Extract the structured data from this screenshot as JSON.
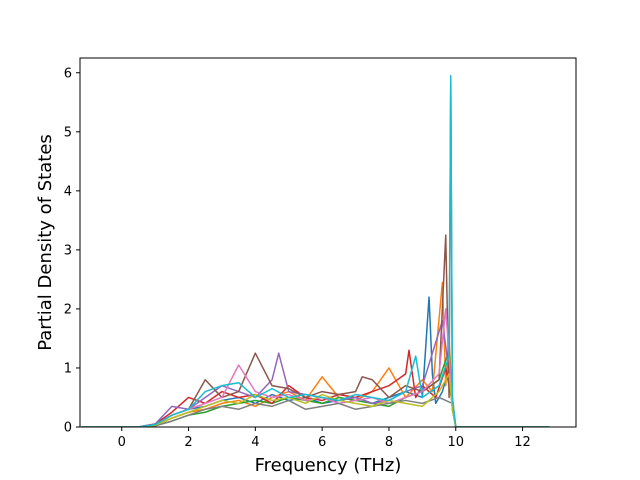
{
  "chart_data": {
    "type": "line",
    "title": "",
    "xlabel": "Frequency (THz)",
    "ylabel": "Partial Density of States",
    "xlim": [
      -1.25,
      13.6
    ],
    "ylim": [
      0,
      6.25
    ],
    "xticks": [
      0,
      2,
      4,
      6,
      8,
      10,
      12
    ],
    "yticks": [
      0,
      1,
      2,
      3,
      4,
      5,
      6
    ],
    "xtick_labels": [
      "0",
      "2",
      "4",
      "6",
      "8",
      "10",
      12
    ],
    "ytick_labels": [
      "0",
      "1",
      "2",
      "3",
      "4",
      "5",
      "6"
    ],
    "grid": false,
    "legend": "none",
    "palette": [
      "#1f77b4",
      "#ff7f0e",
      "#2ca02c",
      "#d62728",
      "#9467bd",
      "#8c564b",
      "#e377c2",
      "#7f7f7f",
      "#bcbd22",
      "#17becf"
    ],
    "series": [
      {
        "color": "#1f77b4",
        "x": [
          -1.2,
          0.5,
          1.0,
          1.5,
          2.0,
          2.5,
          3.0,
          3.5,
          4.0,
          4.5,
          5.0,
          5.5,
          6.0,
          6.5,
          7.0,
          7.5,
          8.0,
          8.5,
          9.0,
          9.2,
          9.3,
          9.4,
          9.6,
          9.8,
          9.9,
          10.0,
          12.8
        ],
        "y": [
          0,
          0,
          0.05,
          0.2,
          0.3,
          0.35,
          0.45,
          0.5,
          0.4,
          0.55,
          0.45,
          0.5,
          0.4,
          0.45,
          0.5,
          0.4,
          0.5,
          0.6,
          0.5,
          2.2,
          0.9,
          0.4,
          0.6,
          1.0,
          0.3,
          0,
          0
        ]
      },
      {
        "color": "#ff7f0e",
        "x": [
          -1.2,
          0.5,
          1.0,
          1.5,
          2.0,
          2.5,
          3.0,
          3.5,
          4.0,
          4.5,
          5.0,
          5.5,
          6.0,
          6.5,
          7.0,
          7.5,
          8.0,
          8.5,
          9.0,
          9.3,
          9.6,
          9.7,
          9.8,
          9.9,
          10.0,
          12.8
        ],
        "y": [
          0,
          0,
          0.03,
          0.15,
          0.25,
          0.3,
          0.4,
          0.45,
          0.35,
          0.5,
          0.6,
          0.45,
          0.85,
          0.5,
          0.45,
          0.6,
          1.0,
          0.5,
          0.8,
          0.6,
          2.45,
          0.7,
          1.5,
          0.4,
          0,
          0
        ]
      },
      {
        "color": "#2ca02c",
        "x": [
          -1.2,
          0.5,
          1.0,
          1.5,
          2.0,
          2.5,
          3.0,
          3.5,
          4.0,
          4.5,
          5.0,
          5.5,
          6.0,
          6.5,
          7.0,
          7.5,
          8.0,
          8.5,
          9.0,
          9.5,
          9.8,
          9.9,
          10.0,
          12.8
        ],
        "y": [
          0,
          0,
          0.02,
          0.1,
          0.2,
          0.25,
          0.35,
          0.4,
          0.45,
          0.4,
          0.5,
          0.45,
          0.4,
          0.5,
          0.45,
          0.4,
          0.35,
          0.5,
          0.6,
          0.8,
          1.3,
          0.3,
          0,
          0
        ]
      },
      {
        "color": "#d62728",
        "x": [
          -1.2,
          0.5,
          1.0,
          1.5,
          2.0,
          2.5,
          3.0,
          3.5,
          4.0,
          4.5,
          5.0,
          5.5,
          6.0,
          6.5,
          7.0,
          7.5,
          8.0,
          8.5,
          8.6,
          8.8,
          9.0,
          9.4,
          9.7,
          9.9,
          10.0,
          12.8
        ],
        "y": [
          0,
          0,
          0.05,
          0.25,
          0.5,
          0.4,
          0.6,
          0.5,
          0.55,
          0.4,
          0.7,
          0.5,
          0.45,
          0.55,
          0.5,
          0.6,
          0.7,
          0.9,
          1.3,
          0.5,
          0.7,
          0.5,
          1.0,
          0.4,
          0,
          0
        ]
      },
      {
        "color": "#9467bd",
        "x": [
          -1.2,
          0.5,
          1.0,
          1.5,
          2.0,
          2.5,
          3.0,
          3.5,
          4.0,
          4.5,
          4.7,
          5.0,
          5.5,
          6.0,
          6.5,
          7.0,
          7.5,
          8.0,
          8.5,
          9.0,
          9.6,
          9.9,
          10.0,
          12.8
        ],
        "y": [
          0,
          0,
          0.05,
          0.35,
          0.3,
          0.5,
          0.7,
          0.6,
          0.5,
          0.8,
          1.25,
          0.6,
          0.55,
          0.5,
          0.45,
          0.5,
          0.4,
          0.45,
          0.6,
          0.7,
          1.8,
          0.5,
          0,
          0
        ]
      },
      {
        "color": "#8c564b",
        "x": [
          -1.2,
          0.5,
          1.0,
          1.5,
          2.0,
          2.5,
          3.0,
          3.5,
          4.0,
          4.5,
          5.0,
          5.5,
          6.0,
          6.5,
          7.0,
          7.2,
          7.5,
          8.0,
          8.5,
          9.0,
          9.5,
          9.7,
          9.8,
          9.85,
          9.9,
          10.0,
          12.8
        ],
        "y": [
          0,
          0,
          0.04,
          0.2,
          0.3,
          0.8,
          0.5,
          0.6,
          1.25,
          0.7,
          0.65,
          0.5,
          0.6,
          0.55,
          0.6,
          0.85,
          0.8,
          0.5,
          0.7,
          0.6,
          0.8,
          3.25,
          0.5,
          5.9,
          0.3,
          0,
          0
        ]
      },
      {
        "color": "#e377c2",
        "x": [
          -1.2,
          0.5,
          1.0,
          1.5,
          2.0,
          2.5,
          3.0,
          3.5,
          4.0,
          4.5,
          5.0,
          5.5,
          6.0,
          6.5,
          7.0,
          7.5,
          8.0,
          8.5,
          9.0,
          9.5,
          9.7,
          9.9,
          10.0,
          12.8
        ],
        "y": [
          0,
          0,
          0.03,
          0.2,
          0.3,
          0.4,
          0.5,
          1.05,
          0.6,
          0.5,
          0.55,
          0.45,
          0.5,
          0.4,
          0.45,
          0.5,
          0.4,
          0.5,
          0.6,
          0.9,
          2.0,
          0.4,
          0,
          0
        ]
      },
      {
        "color": "#7f7f7f",
        "x": [
          -1.2,
          0.5,
          1.0,
          1.5,
          2.0,
          2.5,
          3.0,
          3.5,
          4.0,
          4.5,
          5.0,
          5.5,
          6.0,
          6.5,
          7.0,
          7.5,
          8.0,
          8.5,
          9.0,
          9.5,
          9.9,
          10.0,
          12.8
        ],
        "y": [
          0,
          0,
          0.02,
          0.1,
          0.2,
          0.3,
          0.35,
          0.3,
          0.4,
          0.35,
          0.45,
          0.3,
          0.35,
          0.4,
          0.3,
          0.35,
          0.4,
          0.45,
          0.4,
          0.5,
          0.4,
          0,
          0
        ]
      },
      {
        "color": "#bcbd22",
        "x": [
          -1.2,
          0.5,
          1.0,
          1.5,
          2.0,
          2.5,
          3.0,
          3.5,
          4.0,
          4.5,
          5.0,
          5.5,
          6.0,
          6.5,
          7.0,
          7.5,
          8.0,
          8.5,
          9.0,
          9.5,
          9.8,
          9.9,
          10.0,
          12.8
        ],
        "y": [
          0,
          0,
          0.03,
          0.15,
          0.25,
          0.35,
          0.45,
          0.4,
          0.55,
          0.45,
          0.5,
          0.4,
          0.55,
          0.45,
          0.4,
          0.35,
          0.45,
          0.4,
          0.35,
          0.6,
          0.9,
          0.3,
          0,
          0
        ]
      },
      {
        "color": "#17becf",
        "x": [
          -1.2,
          0.5,
          1.0,
          1.5,
          2.0,
          2.5,
          3.0,
          3.5,
          4.0,
          4.5,
          5.0,
          5.5,
          6.0,
          6.5,
          7.0,
          7.5,
          8.0,
          8.5,
          8.8,
          9.0,
          9.5,
          9.8,
          9.85,
          9.9,
          10.0,
          12.8
        ],
        "y": [
          0,
          0,
          0.04,
          0.2,
          0.3,
          0.6,
          0.7,
          0.75,
          0.5,
          0.65,
          0.5,
          0.55,
          0.5,
          0.45,
          0.55,
          0.5,
          0.45,
          0.6,
          1.2,
          0.5,
          0.7,
          1.2,
          5.95,
          0.5,
          0,
          0
        ]
      }
    ]
  }
}
